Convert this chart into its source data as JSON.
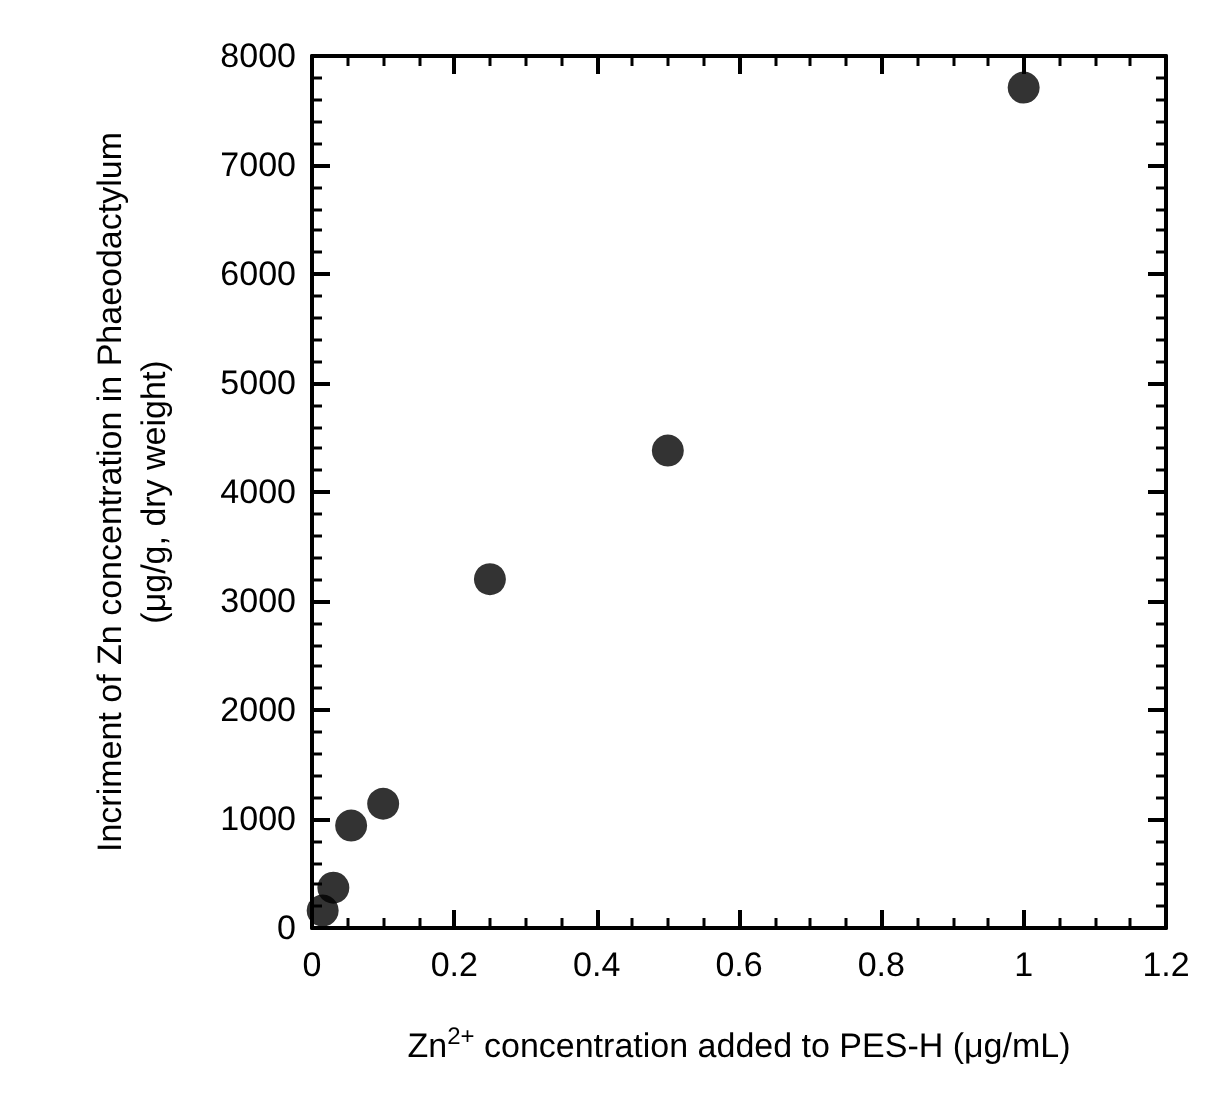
{
  "chart_data": {
    "type": "scatter",
    "xlabel": "Zn$^{2+}$ concentration added to PES-H (μg/mL)",
    "ylabel": "Incriment of Zn concentration in Phaeodactylum\n(μg/g, dry weight)",
    "x": [
      0.015,
      0.03,
      0.055,
      0.1,
      0.25,
      0.5,
      1.0
    ],
    "series": [
      {
        "color": "#000000",
        "values": [
          160,
          370,
          940,
          1140,
          3200,
          4380,
          7710
        ]
      }
    ],
    "xlim": [
      0,
      1.2
    ],
    "xticks": [
      0,
      0.2,
      0.4,
      0.6,
      0.8,
      1,
      1.2
    ],
    "ylim": [
      0,
      8000
    ],
    "yticks": [
      0,
      1000,
      2000,
      3000,
      4000,
      5000,
      6000,
      7000,
      8000
    ],
    "marker": "circle",
    "grid": false
  }
}
